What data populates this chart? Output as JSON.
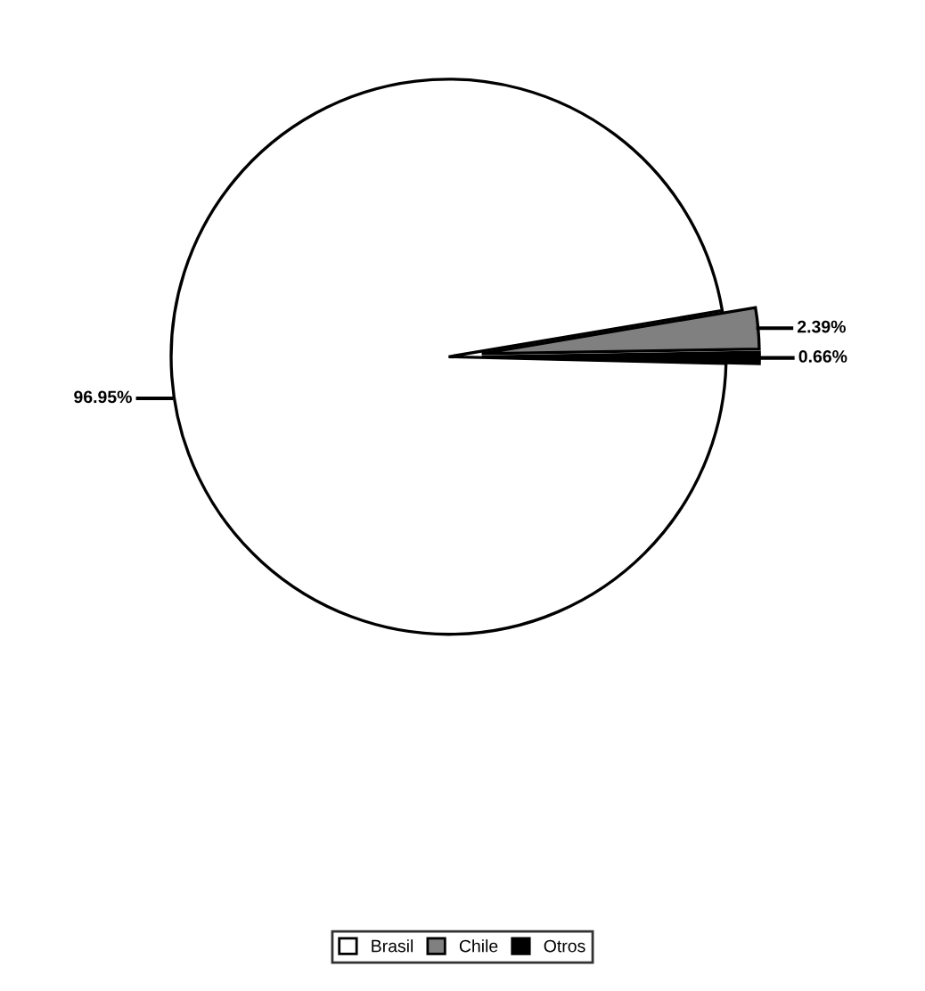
{
  "chart_data": {
    "type": "pie",
    "categories": [
      "Brasil",
      "Chile",
      "Otros"
    ],
    "values": [
      96.95,
      2.39,
      0.66
    ],
    "value_labels": [
      "96.95%",
      "2.39%",
      "0.66%"
    ],
    "colors": [
      "#ffffff",
      "#808080",
      "#000000"
    ],
    "legend": "bottom"
  }
}
